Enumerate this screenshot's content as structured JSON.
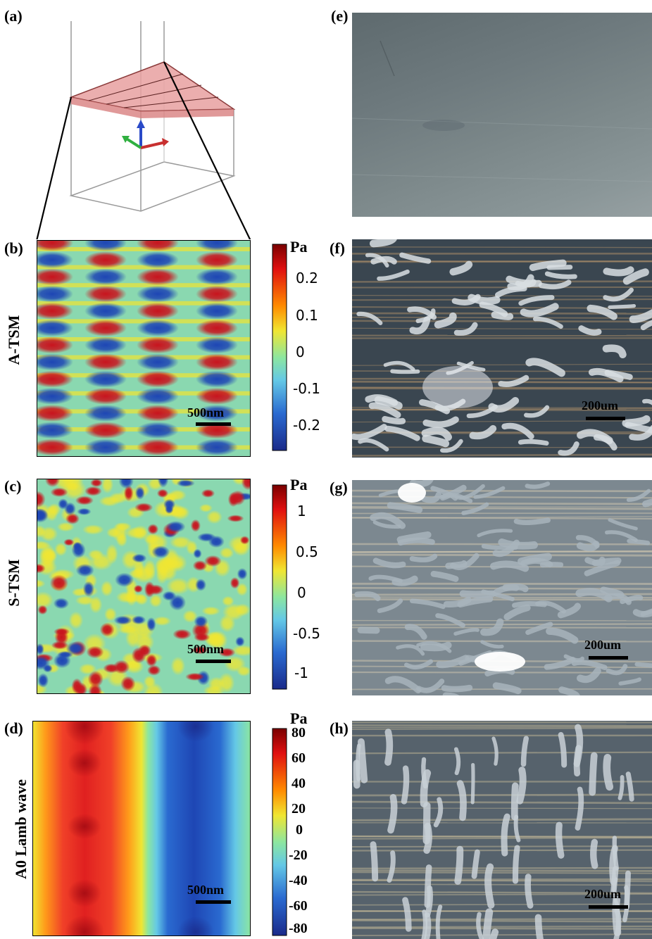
{
  "panels": {
    "a": {
      "label": "(a)"
    },
    "b": {
      "label": "(b)",
      "row_label": "A-TSM",
      "unit": "Pa",
      "ticks": [
        "0.2",
        "0.1",
        "0",
        "-0.1",
        "-0.2"
      ],
      "scale_text": "500nm"
    },
    "c": {
      "label": "(c)",
      "row_label": "S-TSM",
      "unit": "Pa",
      "ticks": [
        "1",
        "0.5",
        "0",
        "-0.5",
        "-1"
      ],
      "scale_text": "500nm"
    },
    "d": {
      "label": "(d)",
      "row_label": "A0 Lamb wave",
      "unit": "Pa",
      "ticks": [
        "80",
        "60",
        "40",
        "20",
        "0",
        "-20",
        "-40",
        "-60",
        "-80"
      ],
      "scale_text": "500nm"
    },
    "e": {
      "label": "(e)"
    },
    "f": {
      "label": "(f)",
      "scale_text": "200um"
    },
    "g": {
      "label": "(g)",
      "scale_text": "200um"
    },
    "h": {
      "label": "(h)",
      "scale_text": "200um"
    }
  },
  "colors": {
    "hot_red": "#c8141e",
    "cold_blue": "#1e46b4",
    "mid_cyan": "#64c8e6",
    "mid_yellow": "#f0e632"
  }
}
